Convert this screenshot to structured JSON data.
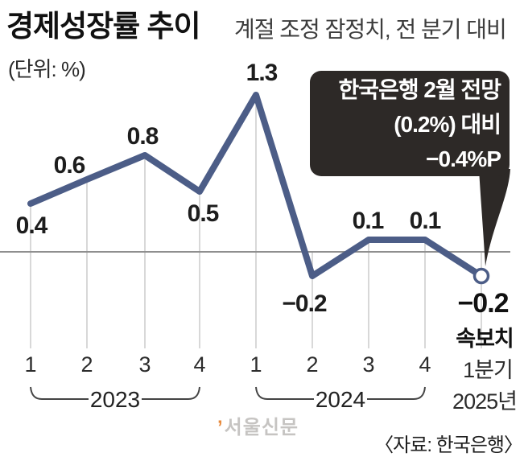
{
  "header": {
    "title": "경제성장률 추이",
    "subtitle": "계절 조정 잠정치, 전 분기 대비",
    "unit": "(단위: %)"
  },
  "callout": {
    "line1": "한국은행 2월 전망",
    "line2": "(0.2%) 대비",
    "line3": "−0.4%P",
    "bg_color": "#2d2927",
    "text_color": "#ffffff"
  },
  "chart_data": {
    "type": "line",
    "title": "경제성장률 추이",
    "subtitle": "계절 조정 잠정치, 전 분기 대비",
    "unit": "%",
    "categories": [
      "2023 Q1",
      "2023 Q2",
      "2023 Q3",
      "2023 Q4",
      "2024 Q1",
      "2024 Q2",
      "2024 Q3",
      "2024 Q4",
      "2025 Q1"
    ],
    "values": [
      0.4,
      0.6,
      0.8,
      0.5,
      1.3,
      -0.2,
      0.1,
      0.1,
      -0.2
    ],
    "point_labels": [
      "0.4",
      "0.6",
      "0.8",
      "0.5",
      "1.3",
      "−0.2",
      "0.1",
      "0.1",
      "−0.2"
    ],
    "quarter_ticks": [
      "1",
      "2",
      "3",
      "4",
      "1",
      "2",
      "3",
      "4"
    ],
    "year_groups": [
      {
        "label": "2023",
        "from_index": 0,
        "to_index": 3
      },
      {
        "label": "2024",
        "from_index": 4,
        "to_index": 7
      }
    ],
    "final_point": {
      "value": -0.2,
      "label": "−0.2",
      "note": "속보치",
      "quarter": "1분기",
      "year": "2025년",
      "marker": "open-circle"
    },
    "line_color": "#4c5d87",
    "axis_color": "#8f8f8f",
    "grid_color": "#cccccc",
    "baseline": 0,
    "ylim": [
      -0.4,
      1.5
    ],
    "legend": "none",
    "grid": "vertical-drop-lines"
  },
  "footer": {
    "watermark_tick": "’",
    "watermark": "서울신문",
    "source": "〈자료: 한국은행〉"
  }
}
